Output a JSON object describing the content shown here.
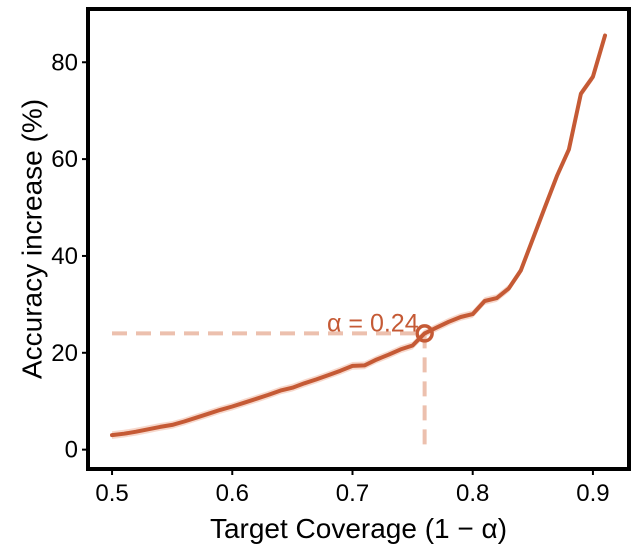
{
  "chart_data": {
    "type": "line",
    "xlabel": "Target Coverage (1 − α)",
    "ylabel": "Accuracy increase (%)",
    "xlim": [
      0.48,
      0.93
    ],
    "ylim": [
      -4,
      91
    ],
    "xticks": [
      {
        "value": 0.5,
        "label": "0.5"
      },
      {
        "value": 0.6,
        "label": "0.6"
      },
      {
        "value": 0.7,
        "label": "0.7"
      },
      {
        "value": 0.8,
        "label": "0.8"
      },
      {
        "value": 0.9,
        "label": "0.9"
      }
    ],
    "yticks": [
      {
        "value": 0,
        "label": "0"
      },
      {
        "value": 20,
        "label": "20"
      },
      {
        "value": 40,
        "label": "40"
      },
      {
        "value": 60,
        "label": "60"
      },
      {
        "value": 80,
        "label": "80"
      }
    ],
    "grid": false,
    "colors": {
      "line": "#c55a35",
      "band": "#f0b8a2",
      "guide": "#ecc0ae",
      "marker": "#c55a35",
      "annotation": "#c55a35",
      "frame": "#000000"
    },
    "series": [
      {
        "x": [
          0.5,
          0.51,
          0.52,
          0.53,
          0.54,
          0.55,
          0.56,
          0.57,
          0.58,
          0.59,
          0.6,
          0.61,
          0.62,
          0.63,
          0.64,
          0.65,
          0.66,
          0.67,
          0.68,
          0.69,
          0.7,
          0.71,
          0.72,
          0.73,
          0.74,
          0.75,
          0.76,
          0.77,
          0.78,
          0.79,
          0.8,
          0.81,
          0.82,
          0.83,
          0.84,
          0.85,
          0.86,
          0.87,
          0.88,
          0.89,
          0.9,
          0.91
        ],
        "y": [
          3.0,
          3.3,
          3.7,
          4.2,
          4.7,
          5.1,
          5.8,
          6.6,
          7.4,
          8.2,
          8.9,
          9.7,
          10.5,
          11.3,
          12.2,
          12.8,
          13.7,
          14.5,
          15.4,
          16.3,
          17.3,
          17.4,
          18.6,
          19.6,
          20.7,
          21.5,
          24.0,
          25.2,
          26.4,
          27.4,
          28.0,
          30.7,
          31.3,
          33.3,
          37.0,
          43.5,
          50.0,
          56.5,
          62.0,
          73.5,
          77.0,
          85.5
        ],
        "band": 0.8
      }
    ],
    "highlight": {
      "x": 0.76,
      "y": 24.0,
      "label": "α = 0.24"
    }
  }
}
